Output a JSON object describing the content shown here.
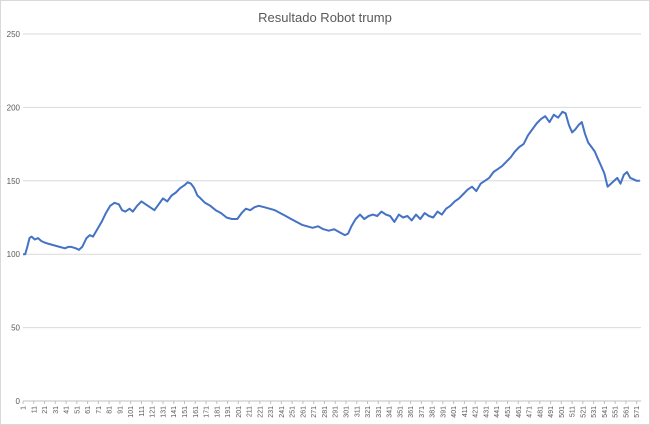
{
  "chart_data": {
    "type": "line",
    "title": "Resultado Robot trump",
    "xlabel": "",
    "ylabel": "",
    "ylim": [
      0,
      250
    ],
    "yticks": [
      0,
      50,
      100,
      150,
      200,
      250
    ],
    "xlim": [
      1,
      575
    ],
    "xtick_labels": [
      "1",
      "11",
      "21",
      "31",
      "41",
      "51",
      "61",
      "71",
      "81",
      "91",
      "101",
      "111",
      "121",
      "131",
      "141",
      "151",
      "161",
      "171",
      "181",
      "191",
      "201",
      "211",
      "221",
      "231",
      "241",
      "251",
      "261",
      "271",
      "281",
      "291",
      "301",
      "311",
      "321",
      "331",
      "341",
      "351",
      "361",
      "371",
      "381",
      "391",
      "401",
      "411",
      "421",
      "431",
      "441",
      "451",
      "461",
      "471",
      "481",
      "491",
      "501",
      "511",
      "521",
      "531",
      "541",
      "551",
      "561",
      "571"
    ],
    "grid": true,
    "legend": "none",
    "series": [
      {
        "color": "#4472c4",
        "x": [
          1,
          3,
          5,
          7,
          9,
          12,
          15,
          18,
          21,
          25,
          30,
          35,
          40,
          43,
          46,
          50,
          53,
          56,
          60,
          63,
          66,
          70,
          74,
          78,
          82,
          86,
          90,
          93,
          96,
          100,
          103,
          107,
          111,
          115,
          119,
          123,
          127,
          131,
          135,
          139,
          143,
          147,
          151,
          154,
          157,
          160,
          163,
          166,
          170,
          175,
          180,
          185,
          190,
          195,
          200,
          204,
          208,
          212,
          216,
          220,
          225,
          230,
          235,
          240,
          245,
          250,
          255,
          260,
          265,
          270,
          275,
          280,
          285,
          290,
          295,
          300,
          303,
          306,
          310,
          314,
          318,
          322,
          326,
          330,
          334,
          338,
          342,
          346,
          350,
          354,
          358,
          362,
          366,
          370,
          374,
          378,
          382,
          386,
          390,
          394,
          398,
          402,
          406,
          410,
          414,
          418,
          422,
          426,
          430,
          434,
          438,
          442,
          446,
          450,
          454,
          458,
          462,
          466,
          470,
          474,
          478,
          482,
          486,
          490,
          494,
          498,
          502,
          505,
          508,
          511,
          514,
          517,
          520,
          523,
          526,
          529,
          532,
          535,
          538,
          541,
          544,
          547,
          550,
          553,
          556,
          559,
          562,
          565,
          568,
          571,
          574
        ],
        "values": [
          100,
          100,
          105,
          111,
          112,
          110,
          111,
          109,
          108,
          107,
          106,
          105,
          104,
          105,
          105,
          104,
          103,
          105,
          111,
          113,
          112,
          117,
          122,
          128,
          133,
          135,
          134,
          130,
          129,
          131,
          129,
          133,
          136,
          134,
          132,
          130,
          134,
          138,
          136,
          140,
          142,
          145,
          147,
          149,
          148,
          145,
          140,
          138,
          135,
          133,
          130,
          128,
          125,
          124,
          124,
          128,
          131,
          130,
          132,
          133,
          132,
          131,
          130,
          128,
          126,
          124,
          122,
          120,
          119,
          118,
          119,
          117,
          116,
          117,
          115,
          113,
          114,
          119,
          124,
          127,
          124,
          126,
          127,
          126,
          129,
          127,
          126,
          122,
          127,
          125,
          126,
          123,
          127,
          124,
          128,
          126,
          125,
          129,
          127,
          131,
          133,
          136,
          138,
          141,
          144,
          146,
          143,
          148,
          150,
          152,
          156,
          158,
          160,
          163,
          166,
          170,
          173,
          175,
          181,
          185,
          189,
          192,
          194,
          190,
          195,
          193,
          197,
          196,
          188,
          183,
          185,
          188,
          190,
          182,
          176,
          173,
          170,
          165,
          160,
          155,
          146,
          148,
          150,
          152,
          148,
          154,
          156,
          152,
          151,
          150,
          150
        ]
      }
    ]
  }
}
